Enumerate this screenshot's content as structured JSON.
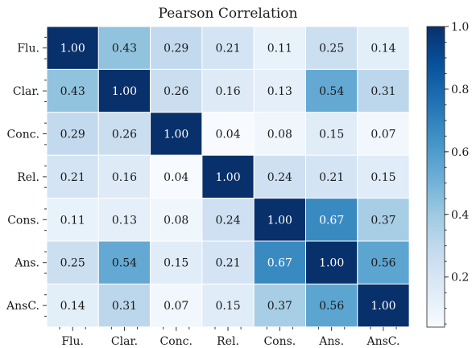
{
  "chart_data": {
    "type": "heatmap",
    "title": "Pearson Correlation",
    "x_labels": [
      "Flu.",
      "Clar.",
      "Conc.",
      "Rel.",
      "Cons.",
      "Ans.",
      "AnsC."
    ],
    "y_labels": [
      "Flu.",
      "Clar.",
      "Conc.",
      "Rel.",
      "Cons.",
      "Ans.",
      "AnsC."
    ],
    "values": [
      [
        1.0,
        0.43,
        0.29,
        0.21,
        0.11,
        0.25,
        0.14
      ],
      [
        0.43,
        1.0,
        0.26,
        0.16,
        0.13,
        0.54,
        0.31
      ],
      [
        0.29,
        0.26,
        1.0,
        0.04,
        0.08,
        0.15,
        0.07
      ],
      [
        0.21,
        0.16,
        0.04,
        1.0,
        0.24,
        0.21,
        0.15
      ],
      [
        0.11,
        0.13,
        0.08,
        0.24,
        1.0,
        0.67,
        0.37
      ],
      [
        0.25,
        0.54,
        0.15,
        0.21,
        0.67,
        1.0,
        0.56
      ],
      [
        0.14,
        0.31,
        0.07,
        0.15,
        0.37,
        0.56,
        1.0
      ]
    ],
    "value_format": "0.00",
    "colormap": "Blues",
    "vmin": 0.04,
    "vmax": 1.0,
    "colorbar": {
      "ticks": [
        0.2,
        0.4,
        0.6,
        0.8,
        1.0
      ],
      "tick_labels": [
        "0.2",
        "0.4",
        "0.6",
        "0.8",
        "1.0"
      ],
      "placement": "right"
    },
    "grid": false
  }
}
